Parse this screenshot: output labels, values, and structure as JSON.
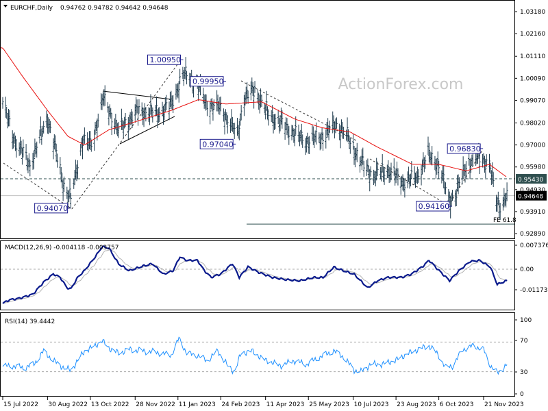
{
  "header": {
    "symbol": "EURCHF,Daily",
    "ohlc": "0.94762 0.94782 0.94642 0.94648"
  },
  "watermark": "ActionForex.com",
  "colors": {
    "bars": "#1f3b4d",
    "ma": "#e8100e",
    "macd": "#0a1a8c",
    "signal": "#b4b4b4",
    "rsi": "#1e90ff",
    "price_tag": "#000000",
    "level_tag": "#2f4f4f"
  },
  "chart_data": [
    {
      "type": "ohlc-bar",
      "title": "EURCHF,Daily",
      "ylim": [
        0.9289,
        1.0318
      ],
      "y_ticks": [
        "1.03180",
        "1.02160",
        "1.01110",
        "1.00090",
        "0.99070",
        "0.98020",
        "0.97000",
        "0.95980",
        "0.94930",
        "0.93910",
        "0.92890"
      ],
      "x_ticks": [
        {
          "date": "2022-07-15",
          "label": "15 Jul 2022"
        },
        {
          "date": "2022-08-30",
          "label": "30 Aug 2022"
        },
        {
          "date": "2022-10-13",
          "label": "13 Oct 2022"
        },
        {
          "date": "2022-11-28",
          "label": "28 Nov 2022"
        },
        {
          "date": "2023-01-11",
          "label": "11 Jan 2023"
        },
        {
          "date": "2023-02-24",
          "label": "24 Feb 2023"
        },
        {
          "date": "2023-04-11",
          "label": "11 Apr 2023"
        },
        {
          "date": "2023-05-25",
          "label": "25 May 2023"
        },
        {
          "date": "2023-07-10",
          "label": "10 Jul 2023"
        },
        {
          "date": "2023-08-23",
          "label": "23 Aug 2023"
        },
        {
          "date": "2023-10-06",
          "label": "6 Oct 2023"
        },
        {
          "date": "2023-11-21",
          "label": "21 Nov 2023"
        }
      ],
      "close_path": [
        [
          "2022-07-15",
          0.99
        ],
        [
          "2022-07-26",
          0.9737
        ],
        [
          "2022-08-12",
          0.961
        ],
        [
          "2022-08-30",
          0.983
        ],
        [
          "2022-09-16",
          0.951
        ],
        [
          "2022-09-23",
          0.945
        ],
        [
          "2022-10-05",
          0.973
        ],
        [
          "2022-10-14",
          0.97
        ],
        [
          "2022-10-26",
          0.992
        ],
        [
          "2022-11-11",
          0.977
        ],
        [
          "2022-11-30",
          0.986
        ],
        [
          "2022-12-21",
          0.985
        ],
        [
          "2023-01-04",
          0.989
        ],
        [
          "2023-01-16",
          1.003
        ],
        [
          "2023-01-30",
          0.9995
        ],
        [
          "2023-02-09",
          0.989
        ],
        [
          "2023-02-23",
          0.988
        ],
        [
          "2023-03-13",
          0.975
        ],
        [
          "2023-03-20",
          0.992
        ],
        [
          "2023-03-31",
          0.996
        ],
        [
          "2023-04-13",
          0.985
        ],
        [
          "2023-05-04",
          0.978
        ],
        [
          "2023-05-22",
          0.972
        ],
        [
          "2023-06-08",
          0.974
        ],
        [
          "2023-06-22",
          0.98
        ],
        [
          "2023-07-03",
          0.975
        ],
        [
          "2023-07-17",
          0.963
        ],
        [
          "2023-07-31",
          0.956
        ],
        [
          "2023-08-14",
          0.959
        ],
        [
          "2023-08-31",
          0.953
        ],
        [
          "2023-09-14",
          0.956
        ],
        [
          "2023-09-25",
          0.966
        ],
        [
          "2023-10-06",
          0.961
        ],
        [
          "2023-10-16",
          0.945
        ],
        [
          "2023-10-23",
          0.947
        ],
        [
          "2023-11-03",
          0.961
        ],
        [
          "2023-11-17",
          0.965
        ],
        [
          "2023-11-27",
          0.961
        ],
        [
          "2023-12-04",
          0.945
        ],
        [
          "2023-12-08",
          0.942
        ],
        [
          "2023-12-15",
          0.94648
        ]
      ],
      "moving_average": [
        [
          "2022-07-15",
          1.015
        ],
        [
          "2022-08-04",
          1.002
        ],
        [
          "2022-08-30",
          0.986
        ],
        [
          "2022-09-20",
          0.974
        ],
        [
          "2022-10-07",
          0.97
        ],
        [
          "2022-11-01",
          0.977
        ],
        [
          "2022-12-07",
          0.982
        ],
        [
          "2023-01-04",
          0.986
        ],
        [
          "2023-02-01",
          0.991
        ],
        [
          "2023-03-01",
          0.989
        ],
        [
          "2023-04-07",
          0.99
        ],
        [
          "2023-05-11",
          0.982
        ],
        [
          "2023-06-08",
          0.978
        ],
        [
          "2023-07-07",
          0.976
        ],
        [
          "2023-08-04",
          0.969
        ],
        [
          "2023-09-09",
          0.961
        ],
        [
          "2023-10-06",
          0.961
        ],
        [
          "2023-11-03",
          0.958
        ],
        [
          "2023-11-27",
          0.961
        ],
        [
          "2023-12-15",
          0.955
        ]
      ],
      "annotations": [
        {
          "label": "1.00950",
          "date": "2023-01-15",
          "price": 1.0095
        },
        {
          "label": "0.99950",
          "date": "2023-02-28",
          "price": 0.9995
        },
        {
          "label": "0.97040",
          "date": "2023-03-10",
          "price": 0.9704
        },
        {
          "label": "0.94070",
          "date": "2022-09-21",
          "price": 0.9407
        },
        {
          "label": "0.94160",
          "date": "2023-10-18",
          "price": 0.9416
        },
        {
          "label": "0.96830",
          "date": "2023-11-19",
          "price": 0.9683
        }
      ],
      "levels": [
        {
          "label": "0.95430",
          "price": 0.9543,
          "style": "dashed"
        },
        {
          "label": "0.94648",
          "price": 0.94648,
          "style": "current"
        },
        {
          "label": "FE 61.8",
          "price": 0.9333,
          "style": "fe"
        }
      ]
    },
    {
      "type": "line",
      "title": "MACD(12,26,9) -0.004118 -0.003757",
      "y_ticks": [
        "0.007376",
        "0.00",
        "-0.011737"
      ],
      "macd": [
        [
          "2022-07-15",
          -0.0125
        ],
        [
          "2022-07-22",
          -0.0112
        ],
        [
          "2022-08-01",
          -0.0107
        ],
        [
          "2022-08-15",
          -0.0092
        ],
        [
          "2022-08-26",
          -0.0048
        ],
        [
          "2022-09-05",
          -0.0018
        ],
        [
          "2022-09-12",
          -0.003
        ],
        [
          "2022-09-19",
          -0.0068
        ],
        [
          "2022-09-23",
          -0.0072
        ],
        [
          "2022-09-30",
          -0.003
        ],
        [
          "2022-10-07",
          -0.0005
        ],
        [
          "2022-10-18",
          0.0045
        ],
        [
          "2022-10-25",
          0.0082
        ],
        [
          "2022-11-01",
          0.0078
        ],
        [
          "2022-11-11",
          0.002
        ],
        [
          "2022-11-22",
          -0.0005
        ],
        [
          "2022-12-06",
          0.0012
        ],
        [
          "2022-12-16",
          0.002
        ],
        [
          "2022-12-27",
          -0.0018
        ],
        [
          "2023-01-06",
          -0.0005
        ],
        [
          "2023-01-13",
          0.0045
        ],
        [
          "2023-01-20",
          0.0032
        ],
        [
          "2023-01-31",
          0.0032
        ],
        [
          "2023-02-07",
          -0.0005
        ],
        [
          "2023-02-14",
          -0.003
        ],
        [
          "2023-02-24",
          -0.0018
        ],
        [
          "2023-03-08",
          0.002
        ],
        [
          "2023-03-15",
          -0.003
        ],
        [
          "2023-03-24",
          0.0008
        ],
        [
          "2023-04-04",
          -0.0012
        ],
        [
          "2023-04-18",
          -0.003
        ],
        [
          "2023-05-02",
          -0.0038
        ],
        [
          "2023-05-16",
          -0.0042
        ],
        [
          "2023-05-30",
          -0.003
        ],
        [
          "2023-06-09",
          -0.003
        ],
        [
          "2023-06-20",
          0.0008
        ],
        [
          "2023-06-30",
          -0.0005
        ],
        [
          "2023-07-11",
          -0.0018
        ],
        [
          "2023-07-25",
          -0.0068
        ],
        [
          "2023-08-04",
          -0.0042
        ],
        [
          "2023-08-15",
          -0.003
        ],
        [
          "2023-08-29",
          -0.003
        ],
        [
          "2023-09-08",
          -0.0018
        ],
        [
          "2023-09-19",
          0.0008
        ],
        [
          "2023-09-26",
          0.0032
        ],
        [
          "2023-10-06",
          -0.0005
        ],
        [
          "2023-10-17",
          -0.0042
        ],
        [
          "2023-10-27",
          -0.0005
        ],
        [
          "2023-11-07",
          0.0028
        ],
        [
          "2023-11-17",
          0.0032
        ],
        [
          "2023-11-28",
          0.0008
        ],
        [
          "2023-12-05",
          -0.0055
        ],
        [
          "2023-12-15",
          -0.004118
        ]
      ]
    },
    {
      "type": "line",
      "title": "RSI(14) 39.4442",
      "ylim": [
        0,
        100
      ],
      "y_ticks": [
        "100",
        "70",
        "30",
        "0"
      ],
      "levels": [
        70,
        30
      ],
      "rsi": [
        [
          "2022-07-15",
          37
        ],
        [
          "2022-07-26",
          38
        ],
        [
          "2022-08-05",
          35
        ],
        [
          "2022-08-16",
          40
        ],
        [
          "2022-08-26",
          58
        ],
        [
          "2022-09-05",
          45
        ],
        [
          "2022-09-16",
          35
        ],
        [
          "2022-09-23",
          32
        ],
        [
          "2022-09-30",
          45
        ],
        [
          "2022-10-07",
          58
        ],
        [
          "2022-10-18",
          65
        ],
        [
          "2022-10-25",
          72
        ],
        [
          "2022-11-01",
          62
        ],
        [
          "2022-11-11",
          55
        ],
        [
          "2022-11-22",
          60
        ],
        [
          "2022-12-06",
          58
        ],
        [
          "2022-12-21",
          56
        ],
        [
          "2023-01-04",
          52
        ],
        [
          "2023-01-12",
          75
        ],
        [
          "2023-01-20",
          55
        ],
        [
          "2023-01-31",
          52
        ],
        [
          "2023-02-10",
          45
        ],
        [
          "2023-02-21",
          58
        ],
        [
          "2023-03-03",
          38
        ],
        [
          "2023-03-10",
          30
        ],
        [
          "2023-03-17",
          55
        ],
        [
          "2023-03-28",
          58
        ],
        [
          "2023-04-07",
          48
        ],
        [
          "2023-04-18",
          42
        ],
        [
          "2023-04-28",
          38
        ],
        [
          "2023-05-09",
          45
        ],
        [
          "2023-05-23",
          40
        ],
        [
          "2023-06-06",
          50
        ],
        [
          "2023-06-20",
          58
        ],
        [
          "2023-06-30",
          50
        ],
        [
          "2023-07-11",
          32
        ],
        [
          "2023-07-18",
          30
        ],
        [
          "2023-07-28",
          40
        ],
        [
          "2023-08-08",
          40
        ],
        [
          "2023-08-22",
          45
        ],
        [
          "2023-09-05",
          55
        ],
        [
          "2023-09-19",
          62
        ],
        [
          "2023-09-26",
          65
        ],
        [
          "2023-10-06",
          52
        ],
        [
          "2023-10-13",
          35
        ],
        [
          "2023-10-20",
          38
        ],
        [
          "2023-10-31",
          60
        ],
        [
          "2023-11-10",
          65
        ],
        [
          "2023-11-21",
          60
        ],
        [
          "2023-11-28",
          38
        ],
        [
          "2023-12-05",
          28
        ],
        [
          "2023-12-15",
          39.4442
        ]
      ]
    }
  ]
}
